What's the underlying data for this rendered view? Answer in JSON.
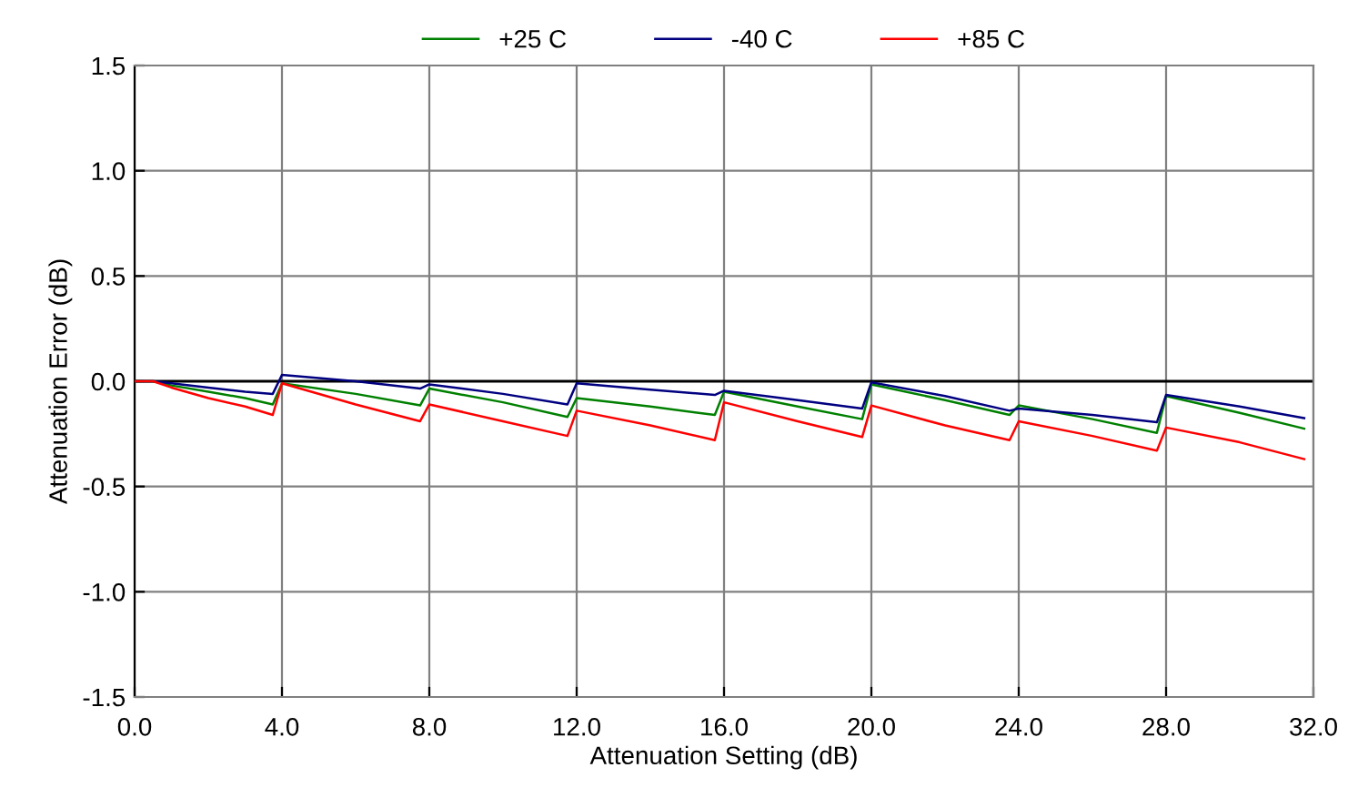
{
  "chart_data": {
    "type": "line",
    "xlabel": "Attenuation Setting (dB)",
    "ylabel": "Attenuation Error (dB)",
    "x": [
      0,
      0.5,
      1,
      2,
      3,
      3.75,
      4,
      6,
      7.75,
      8,
      10,
      11.75,
      12,
      14,
      15.75,
      16,
      18,
      19.75,
      20,
      22,
      23.75,
      24,
      26,
      27.75,
      28,
      30,
      31.75
    ],
    "series": [
      {
        "name": "+25 C",
        "color": "#008000",
        "values": [
          0,
          0,
          -0.02,
          -0.05,
          -0.08,
          -0.11,
          -0.01,
          -0.06,
          -0.115,
          -0.035,
          -0.1,
          -0.17,
          -0.08,
          -0.12,
          -0.16,
          -0.05,
          -0.12,
          -0.18,
          -0.015,
          -0.09,
          -0.16,
          -0.115,
          -0.18,
          -0.245,
          -0.07,
          -0.15,
          -0.225
        ]
      },
      {
        "name": "-40 C",
        "color": "#000080",
        "values": [
          0,
          0,
          -0.01,
          -0.03,
          -0.05,
          -0.06,
          0.03,
          0.0,
          -0.035,
          -0.015,
          -0.06,
          -0.11,
          -0.01,
          -0.04,
          -0.065,
          -0.045,
          -0.09,
          -0.13,
          -0.005,
          -0.07,
          -0.14,
          -0.13,
          -0.16,
          -0.195,
          -0.065,
          -0.12,
          -0.175
        ]
      },
      {
        "name": "+85 C",
        "color": "#ff0000",
        "values": [
          0,
          0,
          -0.03,
          -0.08,
          -0.12,
          -0.16,
          -0.01,
          -0.11,
          -0.19,
          -0.11,
          -0.19,
          -0.26,
          -0.14,
          -0.21,
          -0.28,
          -0.1,
          -0.19,
          -0.265,
          -0.115,
          -0.21,
          -0.28,
          -0.19,
          -0.26,
          -0.33,
          -0.22,
          -0.29,
          -0.37
        ]
      }
    ],
    "xlim": [
      0,
      32
    ],
    "ylim": [
      -1.5,
      1.5
    ],
    "xticks": [
      {
        "value": 0,
        "label": "0.0"
      },
      {
        "value": 4,
        "label": "4.0"
      },
      {
        "value": 8,
        "label": "8.0"
      },
      {
        "value": 12,
        "label": "12.0"
      },
      {
        "value": 16,
        "label": "16.0"
      },
      {
        "value": 20,
        "label": "20.0"
      },
      {
        "value": 24,
        "label": "24.0"
      },
      {
        "value": 28,
        "label": "28.0"
      },
      {
        "value": 32,
        "label": "32.0"
      }
    ],
    "yticks": [
      {
        "value": 1.5,
        "label": "1.5"
      },
      {
        "value": 1,
        "label": "1.0"
      },
      {
        "value": 0.5,
        "label": "0.5"
      },
      {
        "value": 0,
        "label": "0.0"
      },
      {
        "value": -0.5,
        "label": "-0.5"
      },
      {
        "value": -1,
        "label": "-1.0"
      },
      {
        "value": -1.5,
        "label": "-1.5"
      }
    ],
    "ref_lines": [
      {
        "axis": "y",
        "value": 0,
        "color": "#000000"
      }
    ],
    "grid": true,
    "legend": "top",
    "marker": "none",
    "line_style": "solid"
  }
}
